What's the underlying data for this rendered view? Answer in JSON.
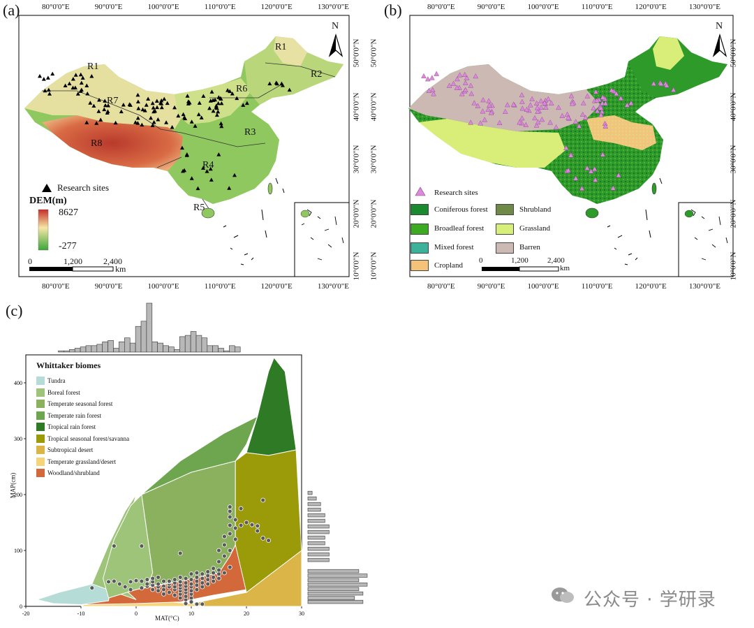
{
  "panels": {
    "a": {
      "label": "(a)",
      "lon_ticks": [
        "80°0'0\"E",
        "90°0'0\"E",
        "100°0'0\"E",
        "110°0'0\"E",
        "120°0'0\"E",
        "130°0'0\"E"
      ],
      "lat_ticks": [
        "50°0'0\"N",
        "40°0'0\"N",
        "30°0'0\"N",
        "20°0'0\"N",
        "10°0'0\"N"
      ],
      "north": "N",
      "regions": [
        "R1",
        "R2",
        "R3",
        "R4",
        "R5",
        "R6",
        "R7",
        "R8",
        "R1"
      ],
      "legend_sites": "Research sites",
      "dem_title": "DEM(m)",
      "dem_max": "8627",
      "dem_min": "-277",
      "scale": [
        "0",
        "1,200",
        "2,400"
      ],
      "scale_unit": "km",
      "colors": {
        "high": "#c0392b",
        "mid": "#f3e6a6",
        "low": "#3da63a"
      }
    },
    "b": {
      "label": "(b)",
      "lon_ticks": [
        "80°0'0\"E",
        "90°0'0\"E",
        "100°0'0\"E",
        "110°0'0\"E",
        "120°0'0\"E",
        "130°0'0\"E"
      ],
      "lat_ticks": [
        "50°0'0\"N",
        "40°0'0\"N",
        "30°0'0\"N",
        "20°0'0\"N",
        "10°0'0\"N"
      ],
      "north": "N",
      "legend_sites": "Research sites",
      "classes": [
        {
          "name": "Coniferous forest",
          "color": "#1a8a2e"
        },
        {
          "name": "Shrubland",
          "color": "#6e8a46"
        },
        {
          "name": "Broadleaf forest",
          "color": "#3dab22"
        },
        {
          "name": "Grassland",
          "color": "#d6f07a"
        },
        {
          "name": "Mixed forest",
          "color": "#3cb29a"
        },
        {
          "name": "Barren",
          "color": "#cdb9b4"
        },
        {
          "name": "Cropland",
          "color": "#f5c27a"
        }
      ],
      "scale": [
        "0",
        "1,200",
        "2,400"
      ],
      "scale_unit": "km"
    },
    "c": {
      "label": "(c)",
      "legend_title": "Whittaker biomes",
      "biomes": [
        {
          "name": "Tundra",
          "color": "#b5dcd6"
        },
        {
          "name": "Boreal forest",
          "color": "#9ec47a"
        },
        {
          "name": "Temperate seasonal forest",
          "color": "#8bb05e"
        },
        {
          "name": "Temperate rain forest",
          "color": "#6ea650"
        },
        {
          "name": "Tropical rain forest",
          "color": "#2f7a24"
        },
        {
          "name": "Tropical seasonal forest/savanna",
          "color": "#9b9a08"
        },
        {
          "name": "Subtropical desert",
          "color": "#dbb547"
        },
        {
          "name": "Temperate grassland/desert",
          "color": "#f6d47a"
        },
        {
          "name": "Woodland/shrubland",
          "color": "#d3683a"
        }
      ],
      "xlabel": "MAT(°C)",
      "ylabel": "MAP(cm)"
    }
  },
  "chart_data": {
    "type": "scatter",
    "title": "Whittaker biomes",
    "xlabel": "MAT(°C)",
    "ylabel": "MAP(cm)",
    "xlim": [
      -20,
      30
    ],
    "ylim": [
      0,
      450
    ],
    "x_ticks": [
      -20,
      -10,
      0,
      10,
      20,
      30
    ],
    "y_ticks": [
      0,
      100,
      200,
      300,
      400
    ],
    "points": [
      [
        -8,
        33
      ],
      [
        -5,
        44
      ],
      [
        -4,
        108
      ],
      [
        -4,
        45
      ],
      [
        -3,
        40
      ],
      [
        -2,
        35
      ],
      [
        -1,
        30
      ],
      [
        -1,
        44
      ],
      [
        0,
        46
      ],
      [
        1,
        108
      ],
      [
        1,
        45
      ],
      [
        1,
        33
      ],
      [
        2,
        36
      ],
      [
        2,
        40
      ],
      [
        3,
        30
      ],
      [
        3,
        38
      ],
      [
        3,
        44
      ],
      [
        4,
        28
      ],
      [
        4,
        35
      ],
      [
        4,
        40
      ],
      [
        5,
        36
      ],
      [
        5,
        30
      ],
      [
        5,
        22
      ],
      [
        5,
        45
      ],
      [
        6,
        25
      ],
      [
        6,
        35
      ],
      [
        6,
        40
      ],
      [
        6,
        44
      ],
      [
        7,
        20
      ],
      [
        7,
        30
      ],
      [
        7,
        35
      ],
      [
        7,
        42
      ],
      [
        7,
        48
      ],
      [
        8,
        15
      ],
      [
        8,
        22
      ],
      [
        8,
        28
      ],
      [
        8,
        33
      ],
      [
        8,
        38
      ],
      [
        8,
        44
      ],
      [
        8,
        52
      ],
      [
        8,
        95
      ],
      [
        9,
        12
      ],
      [
        9,
        18
      ],
      [
        9,
        25
      ],
      [
        9,
        30
      ],
      [
        9,
        36
      ],
      [
        9,
        42
      ],
      [
        9,
        50
      ],
      [
        10,
        10
      ],
      [
        10,
        15
      ],
      [
        10,
        22
      ],
      [
        10,
        28
      ],
      [
        10,
        35
      ],
      [
        10,
        40
      ],
      [
        10,
        48
      ],
      [
        10,
        58
      ],
      [
        11,
        30
      ],
      [
        11,
        38
      ],
      [
        11,
        45
      ],
      [
        11,
        52
      ],
      [
        11,
        60
      ],
      [
        12,
        4
      ],
      [
        12,
        35
      ],
      [
        12,
        42
      ],
      [
        12,
        50
      ],
      [
        12,
        58
      ],
      [
        13,
        40
      ],
      [
        13,
        48
      ],
      [
        13,
        55
      ],
      [
        13,
        62
      ],
      [
        14,
        45
      ],
      [
        14,
        52
      ],
      [
        14,
        60
      ],
      [
        14,
        68
      ],
      [
        15,
        50
      ],
      [
        15,
        58
      ],
      [
        15,
        65
      ],
      [
        15,
        80
      ],
      [
        15,
        100
      ],
      [
        16,
        60
      ],
      [
        16,
        90
      ],
      [
        16,
        110
      ],
      [
        16,
        125
      ],
      [
        17,
        70
      ],
      [
        17,
        100
      ],
      [
        17,
        130
      ],
      [
        17,
        145
      ],
      [
        17,
        160
      ],
      [
        17,
        170
      ],
      [
        17,
        178
      ],
      [
        18,
        120
      ],
      [
        18,
        140
      ],
      [
        18,
        155
      ],
      [
        19,
        145
      ],
      [
        19,
        175
      ],
      [
        20,
        150
      ],
      [
        21,
        146
      ],
      [
        22,
        144
      ],
      [
        22,
        135
      ],
      [
        23,
        122
      ],
      [
        23,
        190
      ],
      [
        24,
        118
      ],
      [
        6,
        45
      ],
      [
        4,
        52
      ],
      [
        3,
        50
      ],
      [
        2,
        48
      ],
      [
        11,
        4
      ],
      [
        10,
        8
      ],
      [
        9,
        5
      ]
    ],
    "top_hist": {
      "bins_x": [
        -15,
        -14,
        -13,
        -12,
        -11,
        -10,
        -9,
        -8,
        -7,
        -6,
        -5,
        -4,
        -3,
        -2,
        -1,
        0,
        1,
        2,
        3,
        4,
        5,
        6,
        7,
        8,
        9,
        10,
        11,
        12,
        13,
        14,
        15,
        16,
        17,
        18,
        19,
        20,
        21,
        22,
        23,
        24
      ],
      "counts": [
        1,
        1,
        2,
        3,
        4,
        5,
        5,
        6,
        8,
        9,
        3,
        8,
        11,
        7,
        20,
        24,
        38,
        8,
        7,
        5,
        4,
        2,
        12,
        13,
        16,
        13,
        11,
        5,
        5,
        3,
        1,
        5,
        4,
        0,
        0,
        0,
        0,
        0,
        0,
        0
      ]
    },
    "right_hist": {
      "bins_y": [
        5,
        12,
        20,
        28,
        36,
        44,
        52,
        60,
        70,
        80,
        90,
        100,
        110,
        120,
        130,
        140,
        150,
        160,
        170,
        180,
        190,
        200
      ],
      "counts": [
        13,
        11,
        13,
        12,
        14,
        12,
        14,
        12,
        0,
        5,
        5,
        5,
        4,
        4,
        5,
        5,
        4,
        4,
        3,
        3,
        2,
        1
      ]
    }
  },
  "watermark": "公众号 · 学研录"
}
